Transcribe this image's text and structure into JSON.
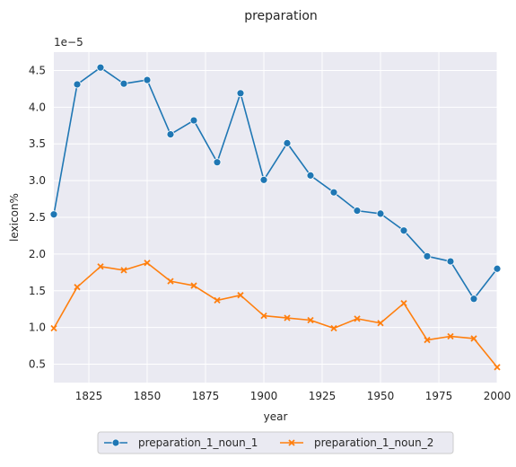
{
  "chart_data": {
    "type": "line",
    "title": "preparation",
    "xlabel": "year",
    "ylabel": "lexicon%",
    "y_scale_label": "1e−5",
    "xlim": [
      1810,
      2000
    ],
    "ylim": [
      0.25,
      4.75
    ],
    "x_ticks": [
      1825,
      1850,
      1875,
      1900,
      1925,
      1950,
      1975,
      2000
    ],
    "y_ticks": [
      0.5,
      1.0,
      1.5,
      2.0,
      2.5,
      3.0,
      3.5,
      4.0,
      4.5
    ],
    "x_tick_labels": [
      "1825",
      "1850",
      "1875",
      "1900",
      "1925",
      "1950",
      "1975",
      "2000"
    ],
    "y_tick_labels": [
      "0.5",
      "1.0",
      "1.5",
      "2.0",
      "2.5",
      "3.0",
      "3.5",
      "4.0",
      "4.5"
    ],
    "grid": true,
    "legend_position": "bottom-center",
    "x": [
      1810,
      1820,
      1830,
      1840,
      1850,
      1860,
      1870,
      1880,
      1890,
      1900,
      1910,
      1920,
      1930,
      1940,
      1950,
      1960,
      1970,
      1980,
      1990,
      2000
    ],
    "series": [
      {
        "name": "preparation_1_noun_1",
        "marker": "circle",
        "color": "#1f77b4",
        "values": [
          2.54,
          4.31,
          4.54,
          4.32,
          4.37,
          3.63,
          3.82,
          3.25,
          4.19,
          3.01,
          3.51,
          3.07,
          2.84,
          2.59,
          2.55,
          2.32,
          1.97,
          1.9,
          1.39,
          1.8
        ]
      },
      {
        "name": "preparation_1_noun_2",
        "marker": "x",
        "color": "#ff7f0e",
        "values": [
          0.99,
          1.55,
          1.83,
          1.78,
          1.88,
          1.63,
          1.57,
          1.37,
          1.44,
          1.16,
          1.13,
          1.1,
          0.99,
          1.12,
          1.06,
          1.33,
          0.83,
          0.88,
          0.85,
          0.46
        ]
      }
    ]
  },
  "colors": {
    "plot_background": "#eaeaf2",
    "grid": "#ffffff"
  }
}
